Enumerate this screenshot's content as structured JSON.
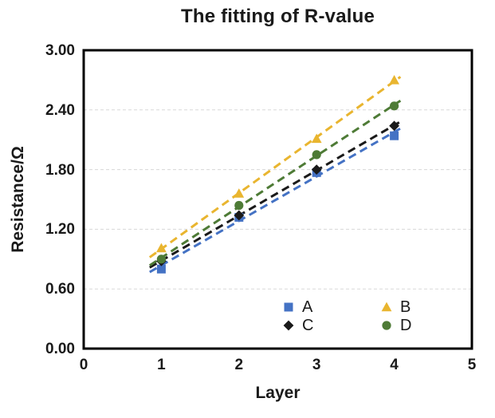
{
  "chart_data": {
    "type": "scatter",
    "title": "The fitting of R-value",
    "xlabel": "Layer",
    "ylabel": "Resistance/Ω",
    "xlim": [
      0,
      5
    ],
    "ylim": [
      0,
      3
    ],
    "x_ticks": [
      "0",
      "1",
      "2",
      "3",
      "4",
      "5"
    ],
    "y_ticks": [
      "0.00",
      "0.60",
      "1.20",
      "1.80",
      "2.40",
      "3.00"
    ],
    "grid": "horizontal-dashed-interior-only",
    "gridline_color": "#d8d8d8",
    "axis_box_color": "#000000",
    "legend_position": "inside-bottom-center-right",
    "x": [
      1,
      2,
      3,
      4
    ],
    "series": [
      {
        "name": "A",
        "marker": "square",
        "color": "#4472c4",
        "values": [
          0.8,
          1.32,
          1.77,
          2.14
        ]
      },
      {
        "name": "B",
        "marker": "triangle",
        "color": "#e9b52f",
        "values": [
          1.01,
          1.56,
          2.11,
          2.7
        ]
      },
      {
        "name": "C",
        "marker": "diamond",
        "color": "#1a1a1a",
        "values": [
          0.88,
          1.34,
          1.8,
          2.24
        ]
      },
      {
        "name": "D",
        "marker": "circle",
        "color": "#4e7b36",
        "values": [
          0.9,
          1.44,
          1.95,
          2.44
        ]
      }
    ],
    "trendlines": {
      "style": "dashed",
      "x_range": [
        0.85,
        4.08
      ]
    }
  }
}
